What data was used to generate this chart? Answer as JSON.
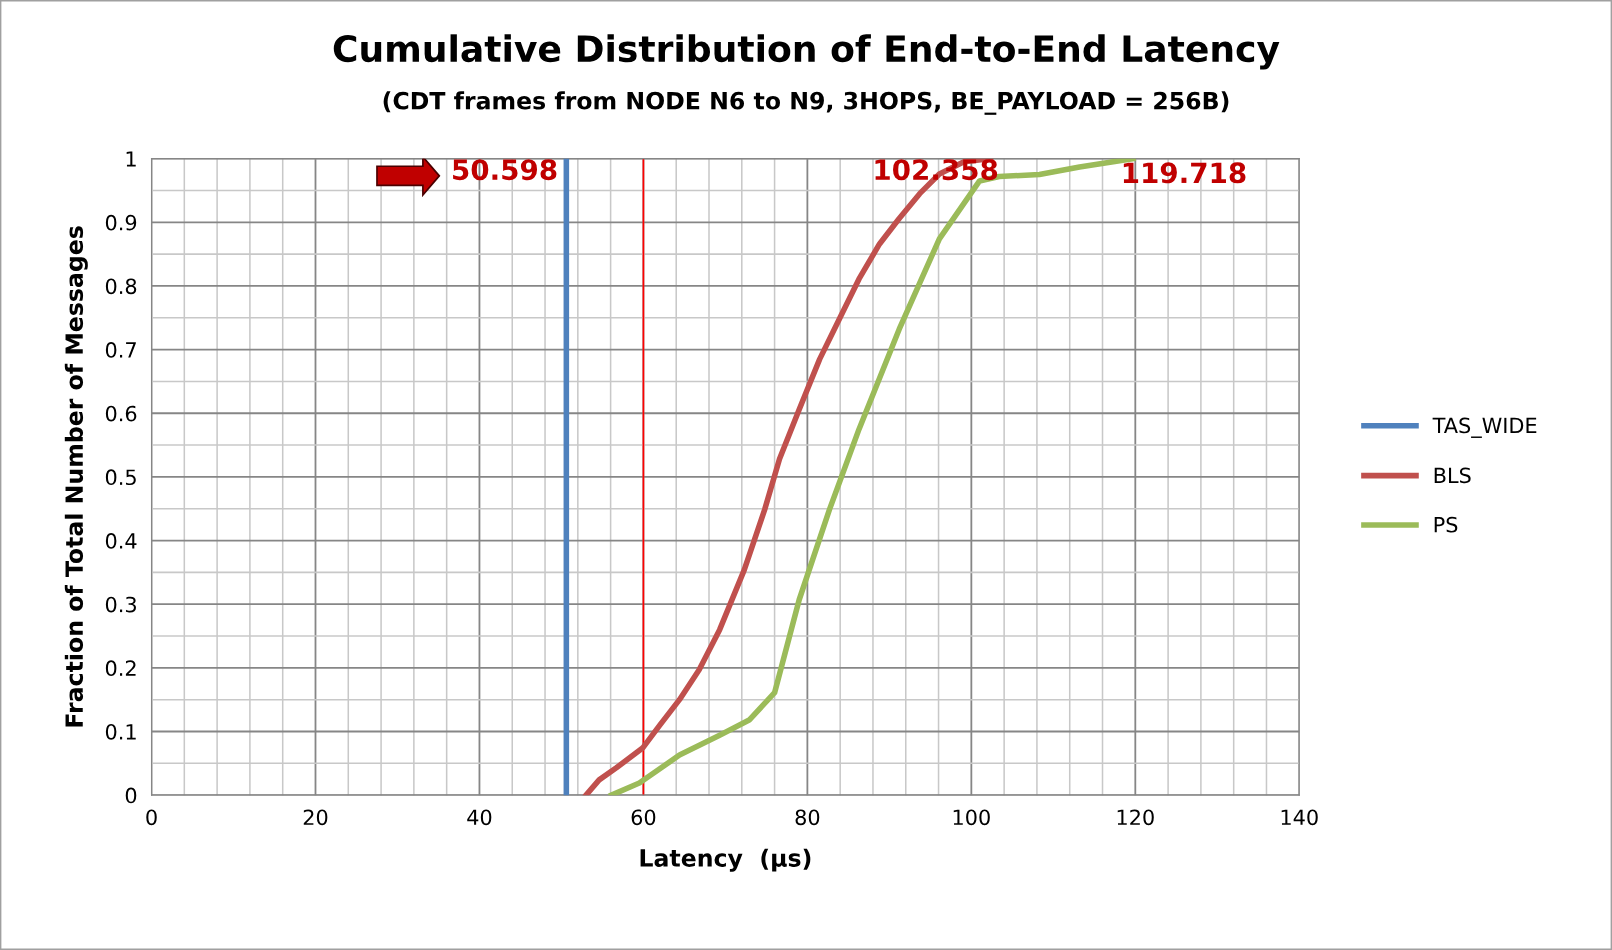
{
  "chart_data": {
    "type": "line",
    "title": "Cumulative Distribution of End-to-End Latency",
    "subtitle": "(CDT frames from NODE N6 to N9, 3HOPS, BE_PAYLOAD = 256B)",
    "xlabel": "Latency  (µs)",
    "ylabel": "Fraction of Total Number of Messages",
    "xlim": [
      0,
      140
    ],
    "xticks": [
      0,
      20,
      40,
      60,
      80,
      100,
      120,
      140
    ],
    "ylim": [
      0,
      1
    ],
    "yticks": [
      0,
      0.1,
      0.2,
      0.3,
      0.4,
      0.5,
      0.6,
      0.7,
      0.8,
      0.9,
      1
    ],
    "grid": true,
    "legend": "right",
    "marker": "none",
    "line_style": "solid",
    "series": [
      {
        "name": "TAS_WIDE",
        "color": "#4f81bd",
        "x": [
          50.598,
          50.598
        ],
        "values": [
          0,
          1
        ]
      },
      {
        "name": "BLS",
        "color": "#c0504d",
        "x": [
          53.0,
          54.6,
          56.7,
          59.9,
          62.0,
          64.4,
          66.8,
          69.3,
          72.3,
          74.8,
          76.6,
          79.0,
          81.5,
          83.9,
          86.3,
          88.8,
          91.2,
          93.7,
          96.1,
          99.1,
          102.358
        ],
        "values": [
          0,
          0.024,
          0.043,
          0.074,
          0.11,
          0.15,
          0.197,
          0.26,
          0.354,
          0.449,
          0.528,
          0.606,
          0.685,
          0.748,
          0.811,
          0.866,
          0.906,
          0.945,
          0.976,
          0.995,
          1
        ]
      },
      {
        "name": "PS",
        "color": "#9bbb59",
        "x": [
          56.1,
          59.5,
          64.4,
          69.3,
          72.9,
          76.0,
          79.0,
          82.7,
          86.3,
          91.2,
          96.1,
          101.0,
          103.4,
          108.3,
          113.2,
          119.718
        ],
        "values": [
          0,
          0.019,
          0.063,
          0.094,
          0.118,
          0.161,
          0.307,
          0.449,
          0.575,
          0.732,
          0.874,
          0.965,
          0.972,
          0.975,
          0.987,
          1
        ]
      }
    ],
    "ref_lines": [
      {
        "axis": "x",
        "value": 60,
        "color": "#ff0000"
      }
    ],
    "annotations": [
      {
        "text": "50.598",
        "x": 50.598,
        "y": 1
      },
      {
        "text": "102.358",
        "x": 102.358,
        "y": 1
      },
      {
        "text": "119.718",
        "x": 119.718,
        "y": 1
      }
    ]
  }
}
